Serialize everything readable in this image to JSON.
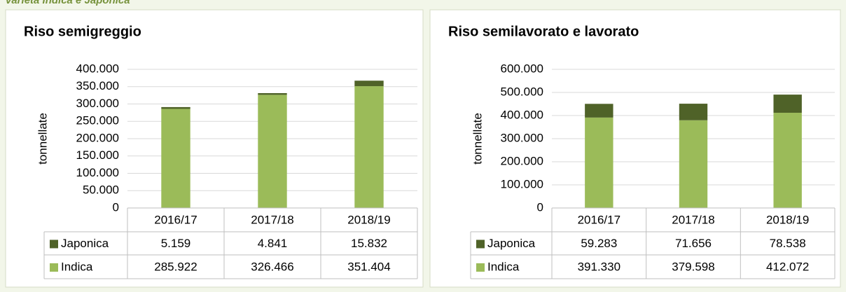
{
  "header": {
    "title": "varietà Indica e Japonica"
  },
  "chart_data": [
    {
      "type": "bar",
      "stacked": true,
      "title": "Riso semigreggio",
      "y_label": "tonnellate",
      "categories": [
        "2016/17",
        "2017/18",
        "2018/19"
      ],
      "series": [
        {
          "name": "Japonica",
          "color": "#4f6228",
          "values": [
            5159,
            4841,
            15832
          ],
          "value_labels": [
            "5.159",
            "4.841",
            "15.832"
          ]
        },
        {
          "name": "Indica",
          "color": "#9bbb59",
          "values": [
            285922,
            326466,
            351404
          ],
          "value_labels": [
            "285.922",
            "326.466",
            "351.404"
          ]
        }
      ],
      "ylim": [
        0,
        400000
      ],
      "yticks": [
        0,
        {
          "value": 50000,
          "label": "50.000"
        },
        {
          "value": 100000,
          "label": "100.000"
        },
        {
          "value": 150000,
          "label": "150.000"
        },
        {
          "value": 200000,
          "label": "200.000"
        },
        {
          "value": 250000,
          "label": "250.000"
        },
        {
          "value": 300000,
          "label": "300.000"
        },
        {
          "value": 350000,
          "label": "350.000"
        },
        {
          "value": 400000,
          "label": "400.000"
        }
      ],
      "grid": true
    },
    {
      "type": "bar",
      "stacked": true,
      "title": "Riso semilavorato e lavorato",
      "y_label": "tonnellate",
      "categories": [
        "2016/17",
        "2017/18",
        "2018/19"
      ],
      "series": [
        {
          "name": "Japonica",
          "color": "#4f6228",
          "values": [
            59283,
            71656,
            78538
          ],
          "value_labels": [
            "59.283",
            "71.656",
            "78.538"
          ]
        },
        {
          "name": "Indica",
          "color": "#9bbb59",
          "values": [
            391330,
            379598,
            412072
          ],
          "value_labels": [
            "391.330",
            "379.598",
            "412.072"
          ]
        }
      ],
      "ylim": [
        0,
        600000
      ],
      "yticks": [
        0,
        {
          "value": 100000,
          "label": "100.000"
        },
        {
          "value": 200000,
          "label": "200.000"
        },
        {
          "value": 300000,
          "label": "300.000"
        },
        {
          "value": 400000,
          "label": "400.000"
        },
        {
          "value": 500000,
          "label": "500.000"
        },
        {
          "value": 600000,
          "label": "600.000"
        }
      ],
      "grid": true
    }
  ]
}
